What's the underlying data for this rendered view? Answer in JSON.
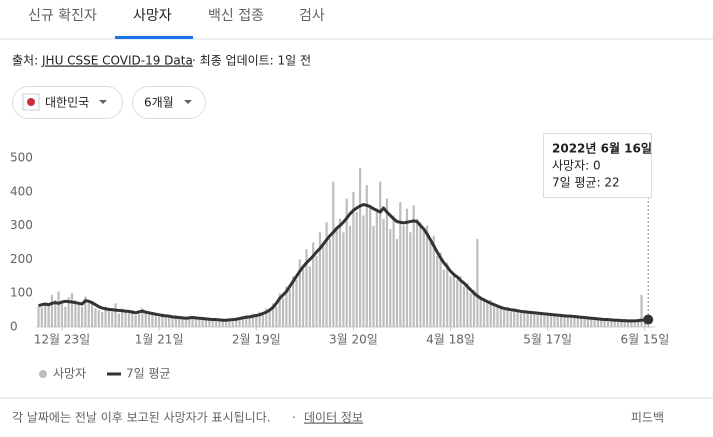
{
  "tabs": [
    "신규 확진자",
    "사망자",
    "백신 접종",
    "검사"
  ],
  "source": {
    "label": "출처:",
    "link": "JHU CSSE COVID-19 Data",
    "rest": "· 최종 업데이트: 1일 전"
  },
  "filters": [
    "대한민국",
    "6개월"
  ],
  "footer": {
    "note": "각 날짜에는 전날 이후 보고된 사망자가 표시됩니다.",
    "link": "데이터 정보",
    "feedback": "피드백"
  },
  "chart_data": {
    "type": "bar",
    "categories": [
      null,
      null,
      null,
      null,
      null,
      null,
      null,
      "12월 23일",
      null,
      null,
      null,
      null,
      null,
      null,
      null,
      null,
      null,
      null,
      null,
      null,
      null,
      null,
      null,
      null,
      null,
      null,
      null,
      null,
      null,
      null,
      null,
      null,
      null,
      null,
      null,
      null,
      "1월 21일",
      null,
      null,
      null,
      null,
      null,
      null,
      null,
      null,
      null,
      null,
      null,
      null,
      null,
      null,
      null,
      null,
      null,
      null,
      null,
      null,
      null,
      null,
      null,
      null,
      null,
      null,
      null,
      null,
      "2월 19일",
      null,
      null,
      null,
      null,
      null,
      null,
      null,
      null,
      null,
      null,
      null,
      null,
      null,
      null,
      null,
      null,
      null,
      null,
      null,
      null,
      null,
      null,
      null,
      null,
      null,
      null,
      null,
      null,
      "3월 20일",
      null,
      null,
      null,
      null,
      null,
      null,
      null,
      null,
      null,
      null,
      null,
      null,
      null,
      null,
      null,
      null,
      null,
      null,
      null,
      null,
      null,
      null,
      null,
      null,
      null,
      null,
      null,
      null,
      "4월 18일",
      null,
      null,
      null,
      null,
      null,
      null,
      null,
      null,
      null,
      null,
      null,
      null,
      null,
      null,
      null,
      null,
      null,
      null,
      null,
      null,
      null,
      null,
      null,
      null,
      null,
      null,
      null,
      null,
      "5월 17일",
      null,
      null,
      null,
      null,
      null,
      null,
      null,
      null,
      null,
      null,
      null,
      null,
      null,
      null,
      null,
      null,
      null,
      null,
      null,
      null,
      null,
      null,
      null,
      null,
      null,
      null,
      null,
      null,
      "6월 15일",
      null
    ],
    "series": [
      {
        "name": "사망자",
        "color": "#bdbdbd",
        "type": "bar",
        "values": [
          60,
          58,
          70,
          65,
          95,
          80,
          105,
          70,
          60,
          88,
          100,
          80,
          65,
          60,
          90,
          70,
          75,
          55,
          50,
          45,
          60,
          50,
          45,
          70,
          40,
          55,
          45,
          40,
          50,
          35,
          48,
          55,
          40,
          38,
          42,
          35,
          30,
          40,
          28,
          33,
          28,
          35,
          25,
          30,
          22,
          28,
          32,
          24,
          26,
          22,
          25,
          20,
          26,
          18,
          22,
          20,
          16,
          24,
          20,
          26,
          28,
          24,
          35,
          26,
          40,
          30,
          45,
          38,
          55,
          48,
          70,
          60,
          100,
          85,
          120,
          110,
          150,
          140,
          200,
          170,
          230,
          180,
          250,
          210,
          280,
          240,
          310,
          260,
          430,
          290,
          320,
          280,
          380,
          300,
          400,
          340,
          470,
          330,
          420,
          360,
          300,
          350,
          430,
          320,
          380,
          290,
          330,
          260,
          370,
          300,
          350,
          280,
          360,
          320,
          310,
          290,
          300,
          250,
          270,
          210,
          220,
          170,
          190,
          150,
          160,
          140,
          150,
          120,
          130,
          100,
          110,
          260,
          90,
          85,
          70,
          80,
          60,
          65,
          55,
          50,
          60,
          45,
          55,
          48,
          40,
          50,
          42,
          38,
          45,
          40,
          42,
          35,
          40,
          33,
          38,
          30,
          35,
          28,
          34,
          30,
          32,
          26,
          30,
          25,
          28,
          22,
          26,
          20,
          24,
          18,
          22,
          18,
          20,
          16,
          20,
          15,
          18,
          16,
          14,
          20,
          95,
          25,
          0
        ]
      },
      {
        "name": "7일 평균",
        "color": "#333333",
        "type": "line",
        "values": [
          63,
          66,
          68,
          66,
          70,
          72,
          70,
          74,
          76,
          75,
          74,
          72,
          70,
          68,
          78,
          76,
          72,
          66,
          60,
          56,
          54,
          52,
          51,
          50,
          49,
          48,
          47,
          46,
          44,
          42,
          45,
          47,
          44,
          42,
          40,
          38,
          36,
          34,
          33,
          32,
          30,
          29,
          28,
          27,
          26,
          27,
          28,
          27,
          26,
          25,
          24,
          23,
          22,
          22,
          21,
          20,
          20,
          21,
          22,
          23,
          25,
          27,
          29,
          30,
          32,
          34,
          36,
          40,
          44,
          50,
          58,
          70,
          85,
          95,
          105,
          120,
          135,
          150,
          165,
          178,
          190,
          200,
          210,
          222,
          232,
          245,
          258,
          270,
          280,
          292,
          300,
          310,
          322,
          335,
          345,
          352,
          358,
          362,
          360,
          356,
          350,
          345,
          340,
          352,
          340,
          330,
          320,
          312,
          310,
          308,
          310,
          312,
          314,
          312,
          300,
          290,
          275,
          258,
          240,
          222,
          205,
          190,
          178,
          165,
          155,
          148,
          138,
          130,
          120,
          110,
          100,
          92,
          85,
          80,
          75,
          70,
          66,
          62,
          58,
          55,
          53,
          51,
          50,
          48,
          46,
          45,
          44,
          43,
          42,
          41,
          40,
          39,
          38,
          37,
          36,
          35,
          34,
          33,
          32,
          32,
          31,
          30,
          29,
          28,
          27,
          26,
          25,
          24,
          23,
          22,
          22,
          21,
          20,
          20,
          19,
          19,
          18,
          18,
          18,
          19,
          20,
          21,
          22
        ]
      }
    ],
    "ylim": [
      0,
      500
    ],
    "yticks": [
      0,
      100,
      200,
      300,
      400,
      500
    ],
    "grid": false,
    "tooltip": {
      "title": "2022년 6월 16일",
      "lines": [
        "사망자: 0",
        "7일 평균: 22"
      ]
    }
  }
}
